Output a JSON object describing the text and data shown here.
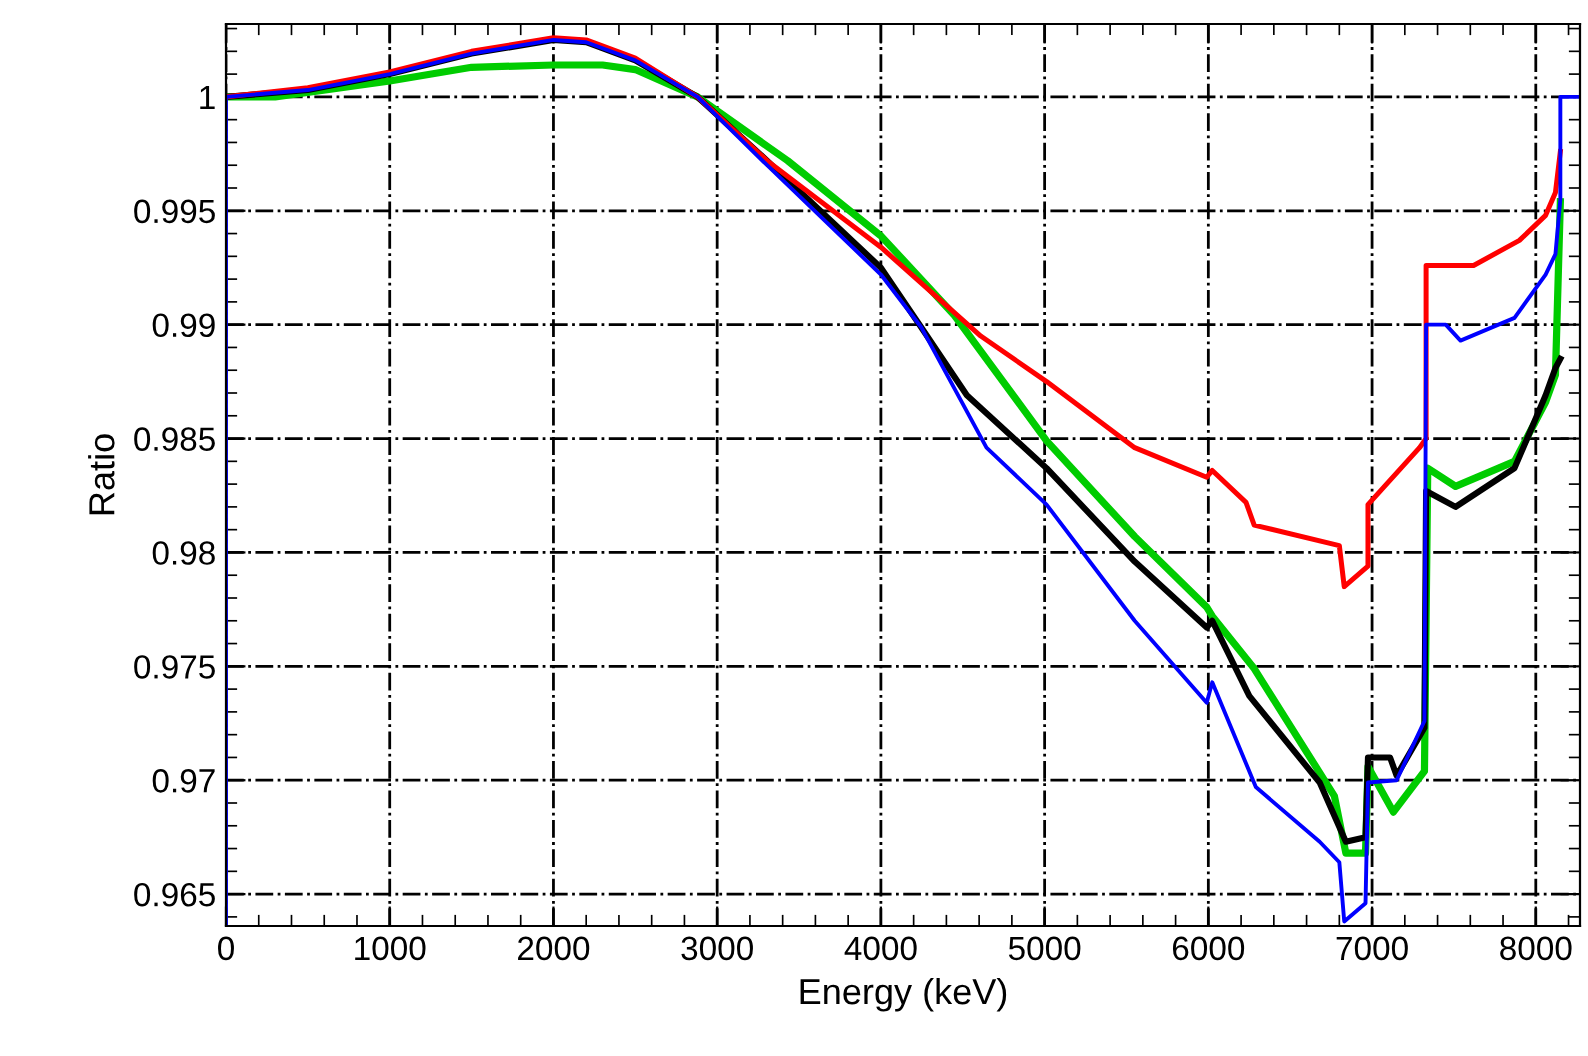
{
  "chart_data": {
    "type": "line",
    "xlabel": "Energy (keV)",
    "ylabel": "Ratio",
    "xlim": [
      0,
      8270
    ],
    "ylim": [
      0.9636,
      1.0032
    ],
    "xticks": [
      0,
      1000,
      2000,
      3000,
      4000,
      5000,
      6000,
      7000,
      8000
    ],
    "yticks": [
      0.965,
      0.97,
      0.975,
      0.98,
      0.985,
      0.99,
      0.995,
      1
    ],
    "grid": true,
    "marker": "none",
    "line_style": "solid",
    "series": [
      {
        "color": "#00cc00",
        "x": [
          0,
          300,
          1000,
          1500,
          2000,
          2300,
          2500,
          2880,
          3430,
          4000,
          4450,
          5012,
          5550,
          5990,
          6024,
          6280,
          6770,
          6840,
          6960,
          6975,
          7130,
          7320,
          7340,
          7510,
          7870,
          8060,
          8120,
          8150
        ],
        "values": [
          1.0,
          1.0,
          1.0007,
          1.0013,
          1.0014,
          1.0014,
          1.0012,
          1.0,
          0.9972,
          0.9939,
          0.9904,
          0.9849,
          0.9807,
          0.9776,
          0.9772,
          0.9749,
          0.9693,
          0.9668,
          0.9668,
          0.9706,
          0.9686,
          0.9704,
          0.9837,
          0.9829,
          0.984,
          0.9866,
          0.9878,
          0.9954
        ]
      },
      {
        "color": "#000000",
        "x": [
          0,
          500,
          1000,
          1500,
          2000,
          2200,
          2500,
          2880,
          3305,
          4000,
          4245,
          4525,
          5012,
          5550,
          5990,
          6024,
          6250,
          6680,
          6840,
          6960,
          6975,
          7110,
          7150,
          7320,
          7330,
          7510,
          7870,
          8060,
          8120,
          8150
        ],
        "values": [
          1.0,
          1.0003,
          1.001,
          1.0019,
          1.0025,
          1.0024,
          1.0016,
          1.0,
          0.9972,
          0.9925,
          0.9899,
          0.9869,
          0.9837,
          0.9796,
          0.9767,
          0.977,
          0.9737,
          0.9699,
          0.9673,
          0.9675,
          0.971,
          0.971,
          0.9702,
          0.9723,
          0.9827,
          0.982,
          0.9837,
          0.9869,
          0.9881,
          0.9885
        ]
      },
      {
        "color": "#ff0000",
        "x": [
          0,
          500,
          1000,
          1500,
          2000,
          2200,
          2500,
          2880,
          3305,
          4000,
          4610,
          5012,
          5550,
          5990,
          6024,
          6230,
          6280,
          6800,
          6830,
          6975,
          6975,
          7290,
          7330,
          7330,
          7620,
          7900,
          8060,
          8120,
          8150
        ],
        "values": [
          1.0,
          1.0004,
          1.0011,
          1.002,
          1.0026,
          1.0025,
          1.0017,
          1.0,
          0.9972,
          0.9934,
          0.9895,
          0.9875,
          0.9846,
          0.9833,
          0.9836,
          0.9822,
          0.9812,
          0.9803,
          0.9785,
          0.9794,
          0.9821,
          0.9846,
          0.985,
          0.9926,
          0.9926,
          0.9937,
          0.9948,
          0.9958,
          0.9976
        ]
      },
      {
        "color": "#0000ff",
        "x": [
          0,
          0,
          500,
          1000,
          1500,
          2000,
          2200,
          2500,
          2880,
          3305,
          4000,
          4245,
          4645,
          5012,
          5550,
          5990,
          6024,
          6290,
          6680,
          6800,
          6830,
          6960,
          6975,
          7150,
          7320,
          7330,
          7450,
          7540,
          7870,
          8060,
          8120,
          8150,
          8150,
          8270
        ],
        "values": [
          0.9636,
          1.0,
          1.0003,
          1.001,
          1.0019,
          1.0025,
          1.0024,
          1.0016,
          1.0,
          0.997,
          0.9922,
          0.9899,
          0.9846,
          0.9821,
          0.977,
          0.9734,
          0.9743,
          0.9697,
          0.9673,
          0.9664,
          0.9638,
          0.9646,
          0.9699,
          0.97,
          0.9726,
          0.99,
          0.99,
          0.9893,
          0.9903,
          0.9922,
          0.9931,
          0.9955,
          1.0,
          1.0
        ]
      }
    ]
  }
}
